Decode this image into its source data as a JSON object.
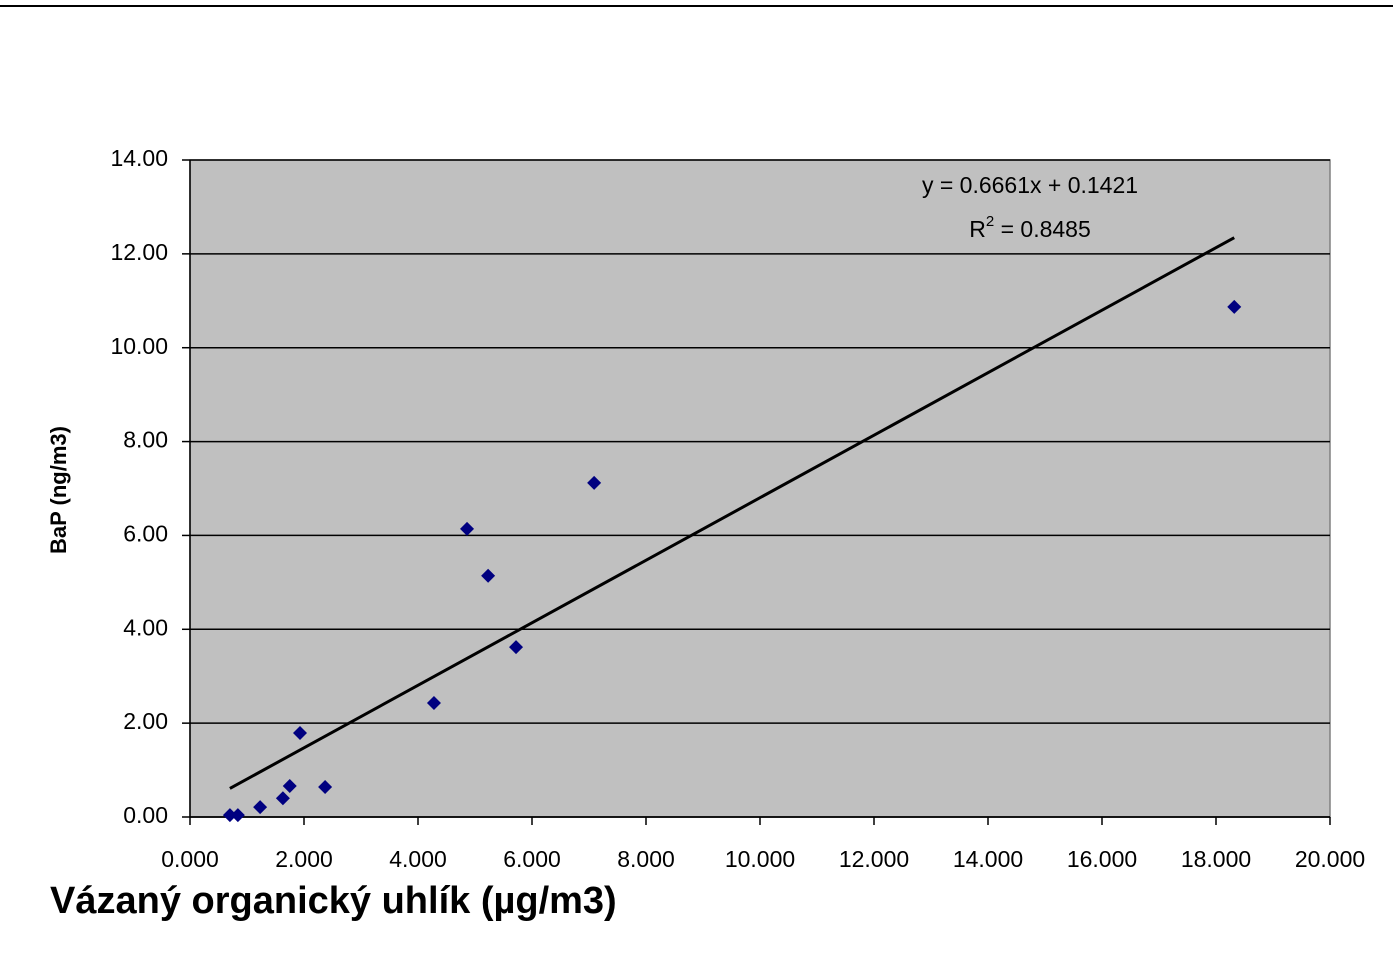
{
  "chart_data": {
    "type": "scatter",
    "x_label": "Vázaný organický uhlík (µg/m3)",
    "y_label": "BaP (ng/m3)",
    "series": [
      {
        "color": "#000080",
        "x": [
          0.7,
          0.84,
          1.23,
          1.63,
          1.75,
          1.93,
          2.37,
          4.28,
          4.86,
          5.23,
          5.72,
          7.09,
          18.32
        ],
        "values": [
          0.04,
          0.04,
          0.21,
          0.4,
          0.66,
          1.79,
          0.64,
          2.43,
          6.14,
          5.14,
          3.62,
          7.12,
          10.87
        ]
      }
    ],
    "trendline": {
      "color": "#000000",
      "slope": 0.6661,
      "intercept": 0.1421,
      "label": "y = 0.6661x + 0.1421",
      "r2_label": {
        "base": "R",
        "sup": "2",
        "rest": " = 0.8485"
      }
    },
    "xlim": [
      0,
      20
    ],
    "xticks": [
      {
        "value": 0,
        "label": "0.000"
      },
      {
        "value": 2,
        "label": "2.000"
      },
      {
        "value": 4,
        "label": "4.000"
      },
      {
        "value": 6,
        "label": "6.000"
      },
      {
        "value": 8,
        "label": "8.000"
      },
      {
        "value": 10,
        "label": "10.000"
      },
      {
        "value": 12,
        "label": "12.000"
      },
      {
        "value": 14,
        "label": "14.000"
      },
      {
        "value": 16,
        "label": "16.000"
      },
      {
        "value": 18,
        "label": "18.000"
      },
      {
        "value": 20,
        "label": "20.000"
      }
    ],
    "ylim": [
      0,
      14
    ],
    "yticks": [
      {
        "value": 0,
        "label": "0.00"
      },
      {
        "value": 2,
        "label": "2.00"
      },
      {
        "value": 4,
        "label": "4.00"
      },
      {
        "value": 6,
        "label": "6.00"
      },
      {
        "value": 8,
        "label": "8.00"
      },
      {
        "value": 10,
        "label": "10.00"
      },
      {
        "value": 12,
        "label": "12.00"
      },
      {
        "value": 14,
        "label": "14.00"
      }
    ],
    "grid": true,
    "plot_background": "#c0c0c0"
  }
}
